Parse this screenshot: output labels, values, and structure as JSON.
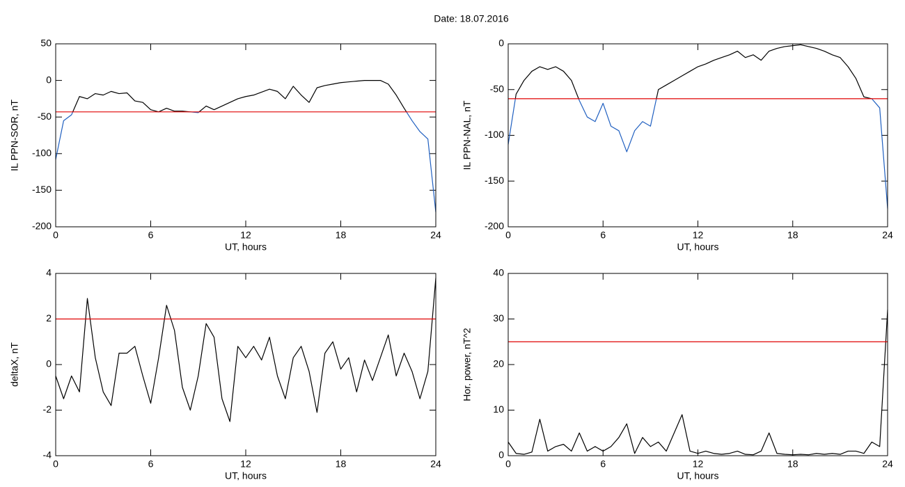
{
  "title": "Date:  18.07.2016",
  "chart_data": [
    {
      "type": "line",
      "ylabel": "IL PPN-SOR, nT",
      "xlabel": "UT, hours",
      "xlim": [
        0,
        24
      ],
      "xticks": [
        0,
        6,
        12,
        18,
        24
      ],
      "ylim": [
        -200,
        50
      ],
      "yticks": [
        50,
        0,
        -50,
        -100,
        -150,
        -200
      ],
      "threshold": -43,
      "threshold_color": "#e00000",
      "below_color": "#1f5fc0",
      "x": [
        0,
        0.5,
        1,
        1.5,
        2,
        2.5,
        3,
        3.5,
        4,
        4.5,
        5,
        5.5,
        6,
        6.5,
        7,
        7.5,
        8,
        8.5,
        9,
        9.5,
        10,
        10.5,
        11,
        11.5,
        12,
        12.5,
        13,
        13.5,
        14,
        14.5,
        15,
        15.5,
        16,
        16.5,
        17,
        17.5,
        18,
        18.5,
        19,
        19.5,
        20,
        20.5,
        21,
        21.5,
        22,
        22.5,
        23,
        23.5,
        24
      ],
      "series": [
        {
          "color": "#000000",
          "values": [
            -108,
            -55,
            -47,
            -22,
            -25,
            -18,
            -20,
            -15,
            -18,
            -17,
            -28,
            -30,
            -40,
            -43,
            -38,
            -42,
            -42,
            -43,
            -44,
            -35,
            -40,
            -35,
            -30,
            -25,
            -22,
            -20,
            -16,
            -12,
            -15,
            -25,
            -8,
            -20,
            -30,
            -10,
            -7,
            -5,
            -3,
            -2,
            -1,
            0,
            0,
            0,
            -5,
            -20,
            -38,
            -55,
            -70,
            -80,
            -180
          ]
        }
      ]
    },
    {
      "type": "line",
      "ylabel": "IL PPN-NAL, nT",
      "xlabel": "UT, hours",
      "xlim": [
        0,
        24
      ],
      "xticks": [
        0,
        6,
        12,
        18,
        24
      ],
      "ylim": [
        -200,
        0
      ],
      "yticks": [
        0,
        -50,
        -100,
        -150,
        -200
      ],
      "threshold": -60,
      "threshold_color": "#e00000",
      "below_color": "#1f5fc0",
      "x": [
        0,
        0.5,
        1,
        1.5,
        2,
        2.5,
        3,
        3.5,
        4,
        4.5,
        5,
        5.5,
        6,
        6.5,
        7,
        7.5,
        8,
        8.5,
        9,
        9.5,
        10,
        10.5,
        11,
        11.5,
        12,
        12.5,
        13,
        13.5,
        14,
        14.5,
        15,
        15.5,
        16,
        16.5,
        17,
        17.5,
        18,
        18.5,
        19,
        19.5,
        20,
        20.5,
        21,
        21.5,
        22,
        22.5,
        23,
        23.5,
        24
      ],
      "series": [
        {
          "color": "#000000",
          "values": [
            -110,
            -55,
            -40,
            -30,
            -25,
            -28,
            -25,
            -30,
            -40,
            -62,
            -80,
            -85,
            -65,
            -90,
            -95,
            -118,
            -95,
            -85,
            -90,
            -50,
            -45,
            -40,
            -35,
            -30,
            -25,
            -22,
            -18,
            -15,
            -12,
            -8,
            -15,
            -12,
            -18,
            -8,
            -5,
            -3,
            -2,
            -1,
            -3,
            -5,
            -8,
            -12,
            -15,
            -25,
            -38,
            -58,
            -60,
            -70,
            -180
          ]
        }
      ]
    },
    {
      "type": "line",
      "ylabel": "deltaX, nT",
      "xlabel": "UT, hours",
      "xlim": [
        0,
        24
      ],
      "xticks": [
        0,
        6,
        12,
        18,
        24
      ],
      "ylim": [
        -4,
        4
      ],
      "yticks": [
        4,
        2,
        0,
        -2,
        -4
      ],
      "threshold": 2,
      "threshold_color": "#e00000",
      "x": [
        0,
        0.5,
        1,
        1.5,
        2,
        2.5,
        3,
        3.5,
        4,
        4.5,
        5,
        5.5,
        6,
        6.5,
        7,
        7.5,
        8,
        8.5,
        9,
        9.5,
        10,
        10.5,
        11,
        11.5,
        12,
        12.5,
        13,
        13.5,
        14,
        14.5,
        15,
        15.5,
        16,
        16.5,
        17,
        17.5,
        18,
        18.5,
        19,
        19.5,
        20,
        20.5,
        21,
        21.5,
        22,
        22.5,
        23,
        23.5,
        24
      ],
      "series": [
        {
          "color": "#000000",
          "values": [
            -0.5,
            -1.5,
            -0.5,
            -1.2,
            2.9,
            0.3,
            -1.2,
            -1.8,
            0.5,
            0.5,
            0.8,
            -0.5,
            -1.7,
            0.3,
            2.6,
            1.5,
            -1.0,
            -2.0,
            -0.5,
            1.8,
            1.2,
            -1.5,
            -2.5,
            0.8,
            0.3,
            0.8,
            0.2,
            1.2,
            -0.5,
            -1.5,
            0.3,
            0.8,
            -0.3,
            -2.1,
            0.5,
            1.0,
            -0.2,
            0.3,
            -1.2,
            0.2,
            -0.7,
            0.3,
            1.3,
            -0.5,
            0.5,
            -0.3,
            -1.5,
            -0.3,
            3.8
          ]
        }
      ]
    },
    {
      "type": "line",
      "ylabel": "Hor. power, nT^2",
      "xlabel": "UT, hours",
      "xlim": [
        0,
        24
      ],
      "xticks": [
        0,
        6,
        12,
        18,
        24
      ],
      "ylim": [
        0,
        40
      ],
      "yticks": [
        40,
        30,
        20,
        10,
        0
      ],
      "threshold": 25,
      "threshold_color": "#e00000",
      "x": [
        0,
        0.5,
        1,
        1.5,
        2,
        2.5,
        3,
        3.5,
        4,
        4.5,
        5,
        5.5,
        6,
        6.5,
        7,
        7.5,
        8,
        8.5,
        9,
        9.5,
        10,
        10.5,
        11,
        11.5,
        12,
        12.5,
        13,
        13.5,
        14,
        14.5,
        15,
        15.5,
        16,
        16.5,
        17,
        17.5,
        18,
        18.5,
        19,
        19.5,
        20,
        20.5,
        21,
        21.5,
        22,
        22.5,
        23,
        23.5,
        24
      ],
      "series": [
        {
          "color": "#000000",
          "values": [
            3,
            0.5,
            0.3,
            0.8,
            8,
            1,
            2,
            2.5,
            1,
            5,
            1,
            2,
            1,
            2,
            4,
            7,
            0.5,
            4,
            2,
            3,
            1,
            5,
            9,
            1,
            0.5,
            1,
            0.5,
            0.3,
            0.5,
            1,
            0.3,
            0.2,
            1,
            5,
            0.5,
            0.3,
            0.2,
            0.3,
            0.2,
            0.5,
            0.3,
            0.5,
            0.3,
            1,
            1,
            0.5,
            3,
            2,
            32
          ]
        }
      ]
    }
  ]
}
